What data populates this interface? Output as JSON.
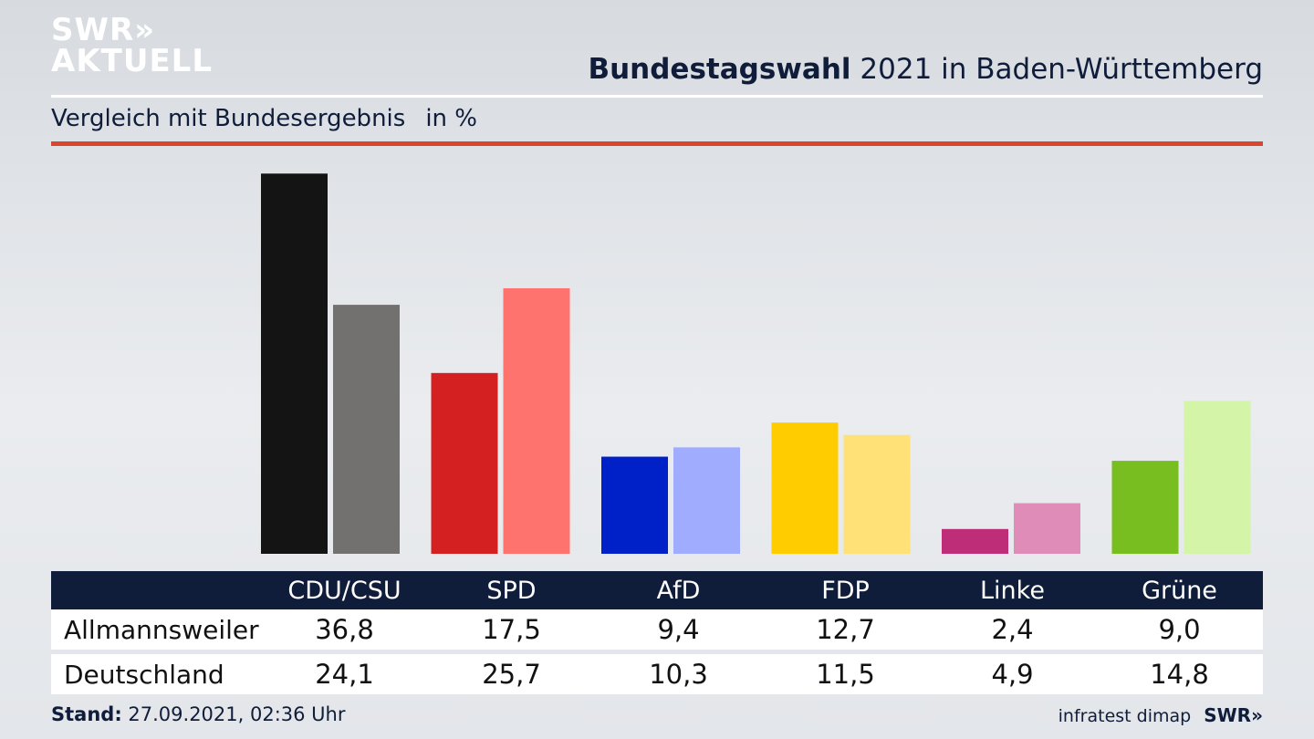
{
  "logo": {
    "line1": "SWR»",
    "line2": "AKTUELL"
  },
  "header": {
    "title_bold": "Bundestagswahl",
    "title_rest": " 2021 in Baden-Württemberg"
  },
  "subtitle": {
    "text": "Vergleich mit Bundesergebnis",
    "unit": "in %"
  },
  "chart_data": {
    "type": "bar",
    "title": "Bundestagswahl 2021 in Baden-Württemberg",
    "subtitle": "Vergleich mit Bundesergebnis",
    "ylabel": "in %",
    "categories": [
      "CDU/CSU",
      "SPD",
      "AfD",
      "FDP",
      "Linke",
      "Grüne"
    ],
    "series": [
      {
        "name": "Allmannsweiler",
        "values": [
          36.8,
          17.5,
          9.4,
          12.7,
          2.4,
          9.0
        ],
        "display": [
          "36,8",
          "17,5",
          "9,4",
          "12,7",
          "2,4",
          "9,0"
        ]
      },
      {
        "name": "Deutschland",
        "values": [
          24.1,
          25.7,
          10.3,
          11.5,
          4.9,
          14.8
        ],
        "display": [
          "24,1",
          "25,7",
          "10,3",
          "11,5",
          "4,9",
          "14,8"
        ]
      }
    ],
    "colors": {
      "primary": [
        "#141414",
        "#d42020",
        "#0020c8",
        "#ffcc00",
        "#be2d78",
        "#78be20"
      ],
      "secondary": [
        "#737170",
        "#ff736e",
        "#a0adff",
        "#ffe178",
        "#e08cb9",
        "#d4f5a8"
      ]
    },
    "ylim": [
      0,
      37
    ],
    "grid": false,
    "legend": "table-below"
  },
  "footer": {
    "stand_label": "Stand:",
    "stand_value": " 27.09.2021, 02:36 Uhr",
    "source": "infratest dimap",
    "brand": "SWR»"
  }
}
